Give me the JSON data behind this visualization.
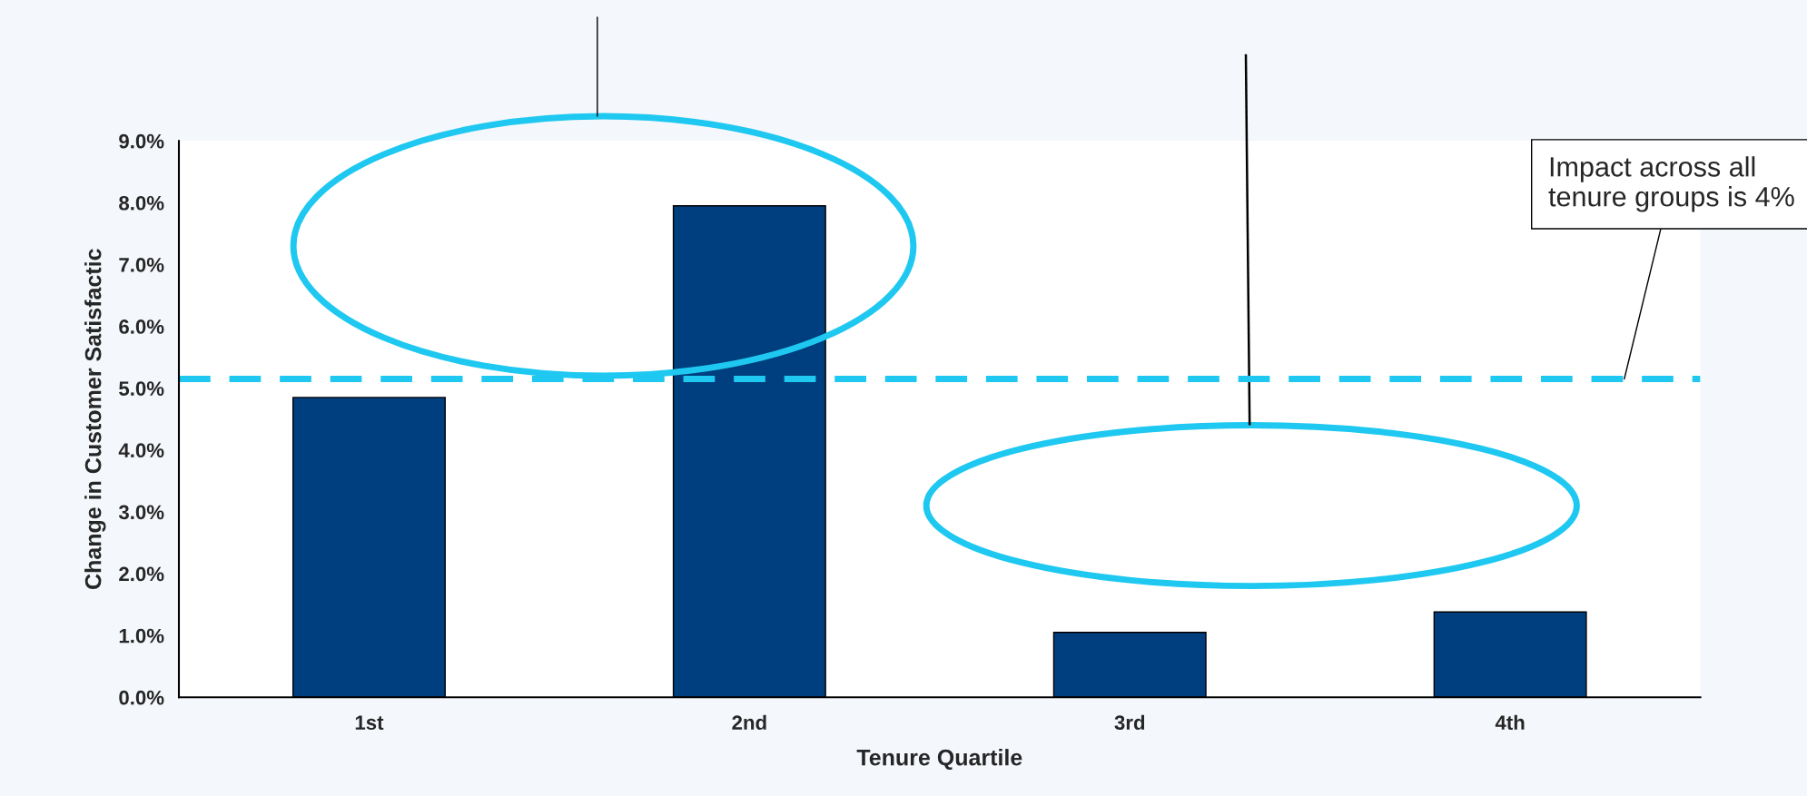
{
  "chart_data": {
    "type": "bar",
    "xlabel": "Tenure Quartile",
    "ylabel": "Change in Customer Satisfactic",
    "categories": [
      "1st",
      "2nd",
      "3rd",
      "4th"
    ],
    "values": [
      4.85,
      7.95,
      1.05,
      1.38
    ],
    "color": "#003f7f",
    "ylim": [
      0,
      9
    ],
    "yticks": [
      {
        "value": 0,
        "label": "0.0%"
      },
      {
        "value": 1,
        "label": "1.0%"
      },
      {
        "value": 2,
        "label": "2.0%"
      },
      {
        "value": 3,
        "label": "3.0%"
      },
      {
        "value": 4,
        "label": "4.0%"
      },
      {
        "value": 5,
        "label": "5.0%"
      },
      {
        "value": 6,
        "label": "6.0%"
      },
      {
        "value": 7,
        "label": "7.0%"
      },
      {
        "value": 8,
        "label": "8.0%"
      },
      {
        "value": 9,
        "label": "9.0%"
      }
    ],
    "ref_lines": [
      {
        "axis": "y",
        "value": 5.15,
        "label": "Impact across all tenure groups is 4%",
        "color": "#1ec8f0",
        "line_style": "dashed"
      }
    ],
    "grid": false,
    "legend": false
  }
}
